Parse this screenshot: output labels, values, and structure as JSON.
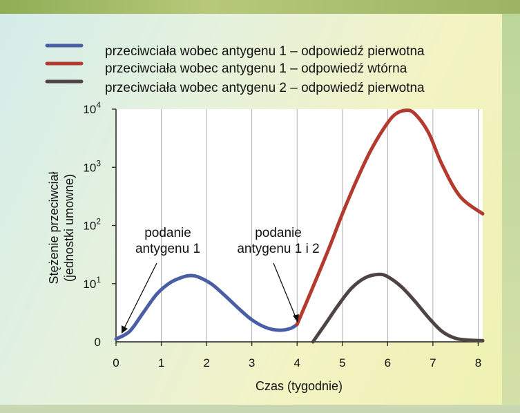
{
  "chart_data": {
    "type": "line",
    "xlabel": "Czas (tygodnie)",
    "ylabel_line1": "Stężenie przeciwciał",
    "ylabel_line2": "(jednostki umowne)",
    "x_ticks": [
      "0",
      "1",
      "2",
      "3",
      "4",
      "5",
      "6",
      "7",
      "8"
    ],
    "y_ticks": [
      {
        "base": "0",
        "exp": ""
      },
      {
        "base": "10",
        "exp": "1"
      },
      {
        "base": "10",
        "exp": "2"
      },
      {
        "base": "10",
        "exp": "3"
      },
      {
        "base": "10",
        "exp": "4"
      }
    ],
    "xlim": [
      0,
      8.1
    ],
    "ylim_log10": [
      0,
      4
    ],
    "y_scale": "log",
    "grid": "vertical",
    "legend_position": "top",
    "series": [
      {
        "name": "przeciwciała wobec antygenu 1 – odpowiedź pierwotna",
        "color": "#4a5ea6",
        "x": [
          0,
          0.3,
          0.6,
          0.9,
          1.2,
          1.5,
          1.65,
          1.8,
          2.1,
          2.4,
          2.7,
          3.0,
          3.3,
          3.6,
          3.85,
          4.0
        ],
        "y_log10": [
          0.05,
          0.18,
          0.5,
          0.82,
          1.02,
          1.12,
          1.14,
          1.12,
          1.0,
          0.8,
          0.58,
          0.38,
          0.25,
          0.2,
          0.23,
          0.3
        ]
      },
      {
        "name": "przeciwciała wobec antygenu 1 – odpowiedź wtórna",
        "color": "#b23a2e",
        "x": [
          4.0,
          4.3,
          4.7,
          5.0,
          5.3,
          5.6,
          5.9,
          6.15,
          6.4,
          6.6,
          6.9,
          7.2,
          7.6,
          8.1
        ],
        "y_log10": [
          0.3,
          0.85,
          1.6,
          2.2,
          2.75,
          3.25,
          3.65,
          3.9,
          3.98,
          3.92,
          3.6,
          3.05,
          2.5,
          2.2
        ]
      },
      {
        "name": "przeciwciała wobec antygenu 2 – odpowiedź pierwotna",
        "color": "#4e4444",
        "x": [
          4.35,
          4.6,
          4.9,
          5.2,
          5.5,
          5.8,
          6.0,
          6.3,
          6.6,
          6.9,
          7.2,
          7.5,
          7.8,
          8.1
        ],
        "y_log10": [
          0.0,
          0.28,
          0.62,
          0.92,
          1.1,
          1.16,
          1.12,
          0.95,
          0.7,
          0.42,
          0.18,
          0.06,
          0.03,
          0.02
        ]
      }
    ],
    "annotations": [
      {
        "lines": [
          "podanie",
          "antygenu 1"
        ],
        "arrow_to_x": 0,
        "arrow_to_y_log10": 0.15
      },
      {
        "lines": [
          "podanie",
          "antygenu 1 i 2"
        ],
        "arrow_to_x": 4.0,
        "arrow_to_y_log10": 0.3
      }
    ]
  }
}
